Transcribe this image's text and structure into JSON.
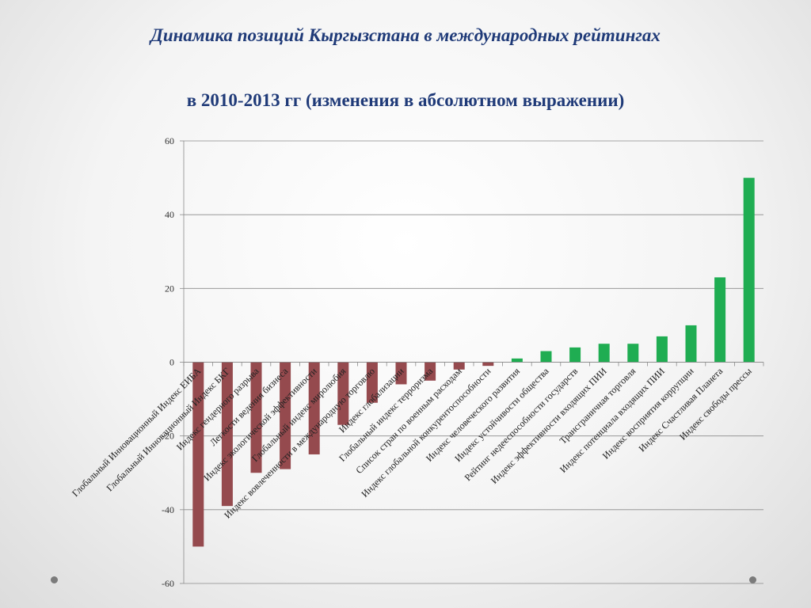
{
  "title": {
    "line1": "Динамика позиций Кыргызстана в международных рейтингах",
    "line2": "в 2010-2013 гг (изменения в абсолютном выражении)"
  },
  "colors": {
    "negative": "#954a4e",
    "positive": "#1fad52",
    "title": "#1f3a78"
  },
  "chart_data": {
    "type": "bar",
    "title": "Динамика позиций Кыргызстана в международных рейтингах в 2010-2013 гг (изменения в абсолютном выражении)",
    "xlabel": "",
    "ylabel": "",
    "ylim": [
      -60,
      60
    ],
    "yticks": [
      -60,
      -40,
      -20,
      0,
      20,
      40,
      60
    ],
    "grid": true,
    "categories": [
      "Глобальный Инновационный Индекс ЕИБА",
      "Глобальный Инновационный Индекс БКГ",
      "Индекс гендерного разрыва",
      "Легкости ведения бизнеса",
      "Индекс экологической эффективности",
      "Глобальный индекс миролюбия",
      "Индекс вовлеченности в международную торговлю",
      "Индекс глобализации",
      "Глобальный индекс терроризма",
      "Список стран по военным расходам",
      "Индекс глобальной конкурентоспособности",
      "Индекс человеческого развития",
      "Индекс устойчивости общества",
      "Рейтинг недееспособности государств",
      "Индекс эффективности входящих ПИИ",
      "Трансграничная торговля",
      "Индекс потенциала входящих ПИИ",
      "Индекс восприятия коррупции",
      "Индекс Счастливая Планета",
      "Индекс свободы прессы"
    ],
    "values": [
      -50,
      -39,
      -30,
      -29,
      -25,
      -17,
      -11,
      -6,
      -5,
      -2,
      -1,
      1,
      3,
      4,
      5,
      5,
      7,
      10,
      23,
      50
    ]
  }
}
